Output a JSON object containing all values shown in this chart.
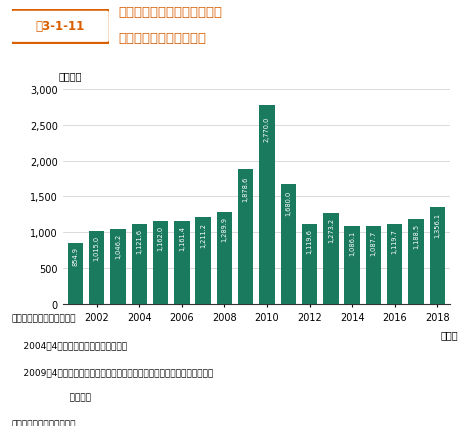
{
  "years": [
    2001,
    2002,
    2003,
    2004,
    2005,
    2006,
    2007,
    2008,
    2009,
    2010,
    2011,
    2012,
    2013,
    2014,
    2015,
    2016,
    2017,
    2018
  ],
  "values": [
    854.9,
    1015.0,
    1046.2,
    1121.6,
    1162.0,
    1161.4,
    1211.2,
    1289.9,
    1878.6,
    2770.0,
    1680.0,
    1119.6,
    1273.2,
    1086.1,
    1087.7,
    1119.7,
    1188.5,
    1356.1
  ],
  "labels": [
    "854.9",
    "1,015.0",
    "1,046.2",
    "1,121.6",
    "1,162.0",
    "1,161.4",
    "1,211.2",
    "1,289.9",
    "1,878.6",
    "2,770.0",
    "1,680.0",
    "1,119.6",
    "1,273.2",
    "1,086.1",
    "1,087.7",
    "1,119.7",
    "1,188.5",
    "1,356.1"
  ],
  "bar_color": "#1a7a5e",
  "background_color": "#ffffff",
  "title_label": "図3-1-11",
  "title_main": "全国の指定引取場所における",
  "title_sub": "廃家電４品目の引取台数",
  "ylabel": "（万台）",
  "xlabel": "（年）",
  "ylim": [
    0,
    3000
  ],
  "yticks": [
    0,
    500,
    1000,
    1500,
    2000,
    2500,
    3000
  ],
  "ytick_labels": [
    "0",
    "500",
    "1,000",
    "1,500",
    "2,000",
    "2,500",
    "3,000"
  ],
  "xtick_positions": [
    1,
    3,
    5,
    7,
    9,
    11,
    13,
    15,
    17
  ],
  "xtick_labels": [
    "2002",
    "2004",
    "2006",
    "2008",
    "2010",
    "2012",
    "2014",
    "2016",
    "2018"
  ],
  "note1": "注：家電の品目追加経緑。",
  "note2": "    2004年4月１日　電気冷凍庫を追加。",
  "note3": "    2009年4月１日　液晶式及びプラズマ式テレビジョン受信機、衣類乾燥機",
  "note4": "                    を追加。",
  "source": "資料：環境省、経済産業省"
}
